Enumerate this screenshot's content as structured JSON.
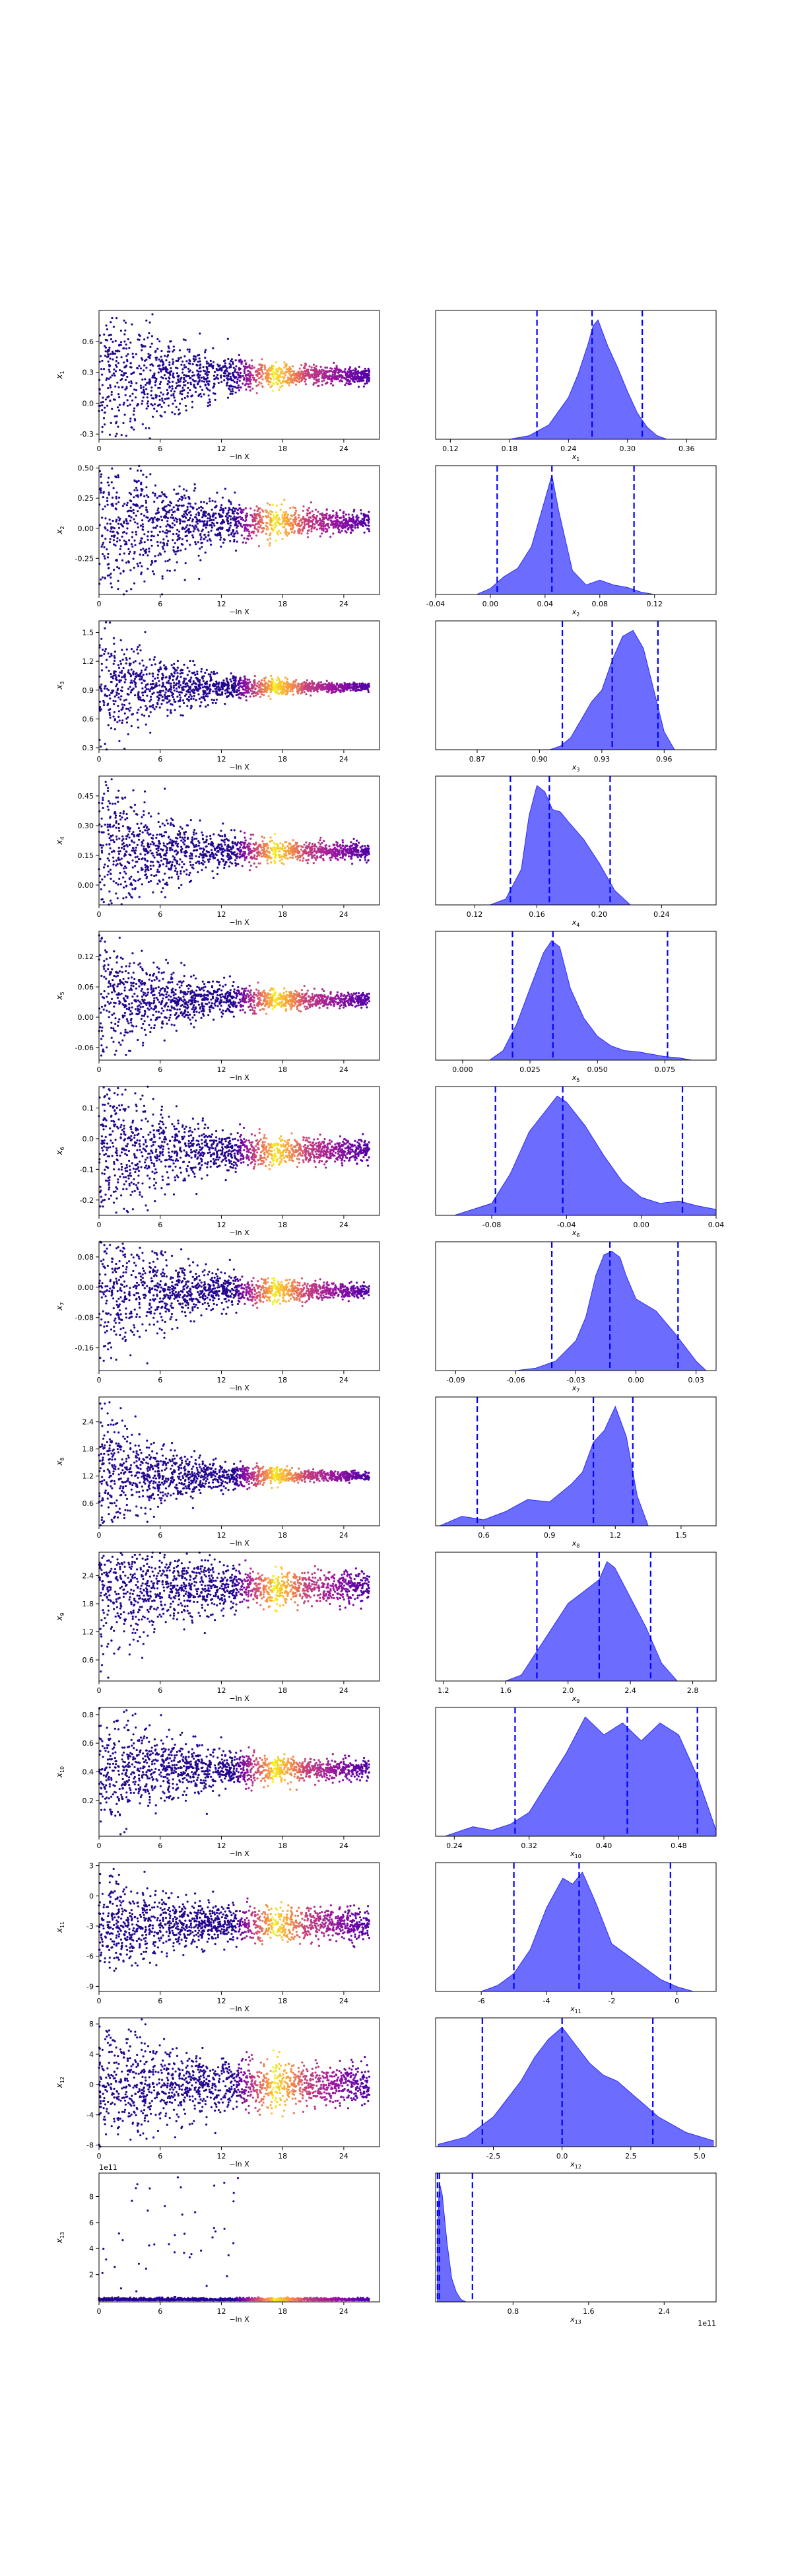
{
  "figure": {
    "scatter_xlabel": "−ln X",
    "colormap": [
      "#0d0887",
      "#5c01a6",
      "#9c179e",
      "#cc4778",
      "#ed7953",
      "#fdb42f",
      "#f0f921"
    ],
    "kde_fill_color": "#6464ff",
    "kde_edge_color": "#2a2aff",
    "quantile_line_color": "#0000ff"
  },
  "chart_data": [
    {
      "type": "scatter",
      "param": "x1",
      "ylabel": "x1",
      "xlim": [
        0,
        27.5
      ],
      "ylim": [
        -0.35,
        0.9
      ],
      "xticks": [
        "0",
        "6",
        "12",
        "18",
        "24"
      ],
      "yticks": [
        "-0.3",
        "0.0",
        "0.3",
        "0.6"
      ],
      "spread_start": 0.45,
      "center": 0.27,
      "spread_end": 0.03,
      "seed": 11
    },
    {
      "type": "area",
      "param": "x1",
      "xlabel": "x1",
      "xlim": [
        0.105,
        0.39
      ],
      "xticks": [
        "0.12",
        "0.18",
        "0.24",
        "0.30",
        "0.36"
      ],
      "quantiles": [
        0.208,
        0.264,
        0.315
      ],
      "kde_x": [
        0.18,
        0.2,
        0.22,
        0.24,
        0.25,
        0.26,
        0.265,
        0.27,
        0.28,
        0.29,
        0.3,
        0.31,
        0.32,
        0.33,
        0.34
      ],
      "kde_y": [
        0,
        0.03,
        0.12,
        0.35,
        0.55,
        0.8,
        0.95,
        1.0,
        0.78,
        0.6,
        0.4,
        0.22,
        0.1,
        0.03,
        0
      ]
    },
    {
      "type": "scatter",
      "param": "x2",
      "ylabel": "x2",
      "xlim": [
        0,
        27.5
      ],
      "ylim": [
        -0.55,
        0.52
      ],
      "xticks": [
        "0",
        "6",
        "12",
        "18",
        "24"
      ],
      "yticks": [
        "-0.25",
        "0.00",
        "0.25",
        "0.50"
      ],
      "spread_start": 0.45,
      "center": 0.05,
      "spread_end": 0.03,
      "seed": 23
    },
    {
      "type": "area",
      "param": "x2",
      "xlabel": "x2",
      "xlim": [
        -0.04,
        0.165
      ],
      "xticks": [
        "-0.04",
        "0.00",
        "0.04",
        "0.08",
        "0.12"
      ],
      "quantiles": [
        0.005,
        0.045,
        0.105
      ],
      "kde_x": [
        -0.01,
        0.0,
        0.01,
        0.02,
        0.03,
        0.04,
        0.045,
        0.05,
        0.06,
        0.07,
        0.08,
        0.09,
        0.1,
        0.11,
        0.12
      ],
      "kde_y": [
        0,
        0.05,
        0.15,
        0.22,
        0.4,
        0.8,
        1.0,
        0.7,
        0.2,
        0.08,
        0.12,
        0.08,
        0.06,
        0.02,
        0
      ]
    },
    {
      "type": "scatter",
      "param": "x3",
      "ylabel": "x3",
      "xlim": [
        0,
        27.5
      ],
      "ylim": [
        0.28,
        1.62
      ],
      "xticks": [
        "0",
        "6",
        "12",
        "18",
        "24"
      ],
      "yticks": [
        "0.3",
        "0.6",
        "0.9",
        "1.2",
        "1.5"
      ],
      "spread_start": 0.35,
      "center": 0.93,
      "spread_end": 0.015,
      "seed": 37
    },
    {
      "type": "area",
      "param": "x3",
      "xlabel": "x3",
      "xlim": [
        0.85,
        0.985
      ],
      "xticks": [
        "0.87",
        "0.90",
        "0.93",
        "0.96"
      ],
      "quantiles": [
        0.911,
        0.935,
        0.957
      ],
      "kde_x": [
        0.905,
        0.91,
        0.915,
        0.92,
        0.925,
        0.93,
        0.935,
        0.94,
        0.945,
        0.95,
        0.955,
        0.96,
        0.965
      ],
      "kde_y": [
        0,
        0.03,
        0.1,
        0.25,
        0.4,
        0.5,
        0.75,
        0.95,
        1.0,
        0.85,
        0.5,
        0.15,
        0
      ]
    },
    {
      "type": "scatter",
      "param": "x4",
      "ylabel": "x4",
      "xlim": [
        0,
        27.5
      ],
      "ylim": [
        -0.1,
        0.55
      ],
      "xticks": [
        "0",
        "6",
        "12",
        "18",
        "24"
      ],
      "yticks": [
        "0.00",
        "0.15",
        "0.30",
        "0.45"
      ],
      "spread_start": 0.2,
      "center": 0.17,
      "spread_end": 0.015,
      "seed": 41
    },
    {
      "type": "area",
      "param": "x4",
      "xlabel": "x4",
      "xlim": [
        0.095,
        0.275
      ],
      "xticks": [
        "0.12",
        "0.16",
        "0.20",
        "0.24"
      ],
      "quantiles": [
        0.143,
        0.168,
        0.207
      ],
      "kde_x": [
        0.13,
        0.14,
        0.15,
        0.155,
        0.16,
        0.165,
        0.17,
        0.175,
        0.18,
        0.19,
        0.2,
        0.21,
        0.22
      ],
      "kde_y": [
        0,
        0.05,
        0.3,
        0.75,
        1.0,
        0.95,
        0.8,
        0.78,
        0.7,
        0.55,
        0.35,
        0.12,
        0
      ]
    },
    {
      "type": "scatter",
      "param": "x5",
      "ylabel": "x5",
      "xlim": [
        0,
        27.5
      ],
      "ylim": [
        -0.085,
        0.17
      ],
      "xticks": [
        "0",
        "6",
        "12",
        "18",
        "24"
      ],
      "yticks": [
        "-0.06",
        "0.00",
        "0.06",
        "0.12"
      ],
      "spread_start": 0.07,
      "center": 0.035,
      "spread_end": 0.005,
      "seed": 53
    },
    {
      "type": "area",
      "param": "x5",
      "xlabel": "x5",
      "xlim": [
        -0.01,
        0.094
      ],
      "xticks": [
        "0.000",
        "0.025",
        "0.050",
        "0.075"
      ],
      "quantiles": [
        0.0185,
        0.0335,
        0.076
      ],
      "kde_x": [
        0.01,
        0.015,
        0.02,
        0.025,
        0.03,
        0.033,
        0.036,
        0.04,
        0.045,
        0.05,
        0.055,
        0.06,
        0.065,
        0.07,
        0.075,
        0.08,
        0.085
      ],
      "kde_y": [
        0,
        0.08,
        0.3,
        0.6,
        0.9,
        1.0,
        0.95,
        0.6,
        0.35,
        0.2,
        0.12,
        0.08,
        0.07,
        0.05,
        0.03,
        0.02,
        0
      ]
    },
    {
      "type": "scatter",
      "param": "x6",
      "ylabel": "x6",
      "xlim": [
        0,
        27.5
      ],
      "ylim": [
        -0.25,
        0.17
      ],
      "xticks": [
        "0",
        "6",
        "12",
        "18",
        "24"
      ],
      "yticks": [
        "-0.2",
        "-0.1",
        "0.0",
        "0.1"
      ],
      "spread_start": 0.13,
      "center": -0.04,
      "spread_end": 0.015,
      "seed": 67
    },
    {
      "type": "area",
      "param": "x6",
      "xlabel": "x6",
      "xlim": [
        -0.11,
        0.04
      ],
      "xticks": [
        "-0.08",
        "-0.04",
        "0.00",
        "0.04"
      ],
      "quantiles": [
        -0.078,
        -0.042,
        0.022
      ],
      "kde_x": [
        -0.1,
        -0.08,
        -0.07,
        -0.06,
        -0.05,
        -0.045,
        -0.04,
        -0.03,
        -0.02,
        -0.01,
        0.0,
        0.01,
        0.02,
        0.03,
        0.04
      ],
      "kde_y": [
        0,
        0.1,
        0.35,
        0.7,
        0.9,
        1.0,
        0.95,
        0.75,
        0.5,
        0.28,
        0.15,
        0.1,
        0.12,
        0.08,
        0.05
      ]
    },
    {
      "type": "scatter",
      "param": "x7",
      "ylabel": "x7",
      "xlim": [
        0,
        27.5
      ],
      "ylim": [
        -0.22,
        0.12
      ],
      "xticks": [
        "0",
        "6",
        "12",
        "18",
        "24"
      ],
      "yticks": [
        "-0.16",
        "-0.08",
        "0.00",
        "0.08"
      ],
      "spread_start": 0.1,
      "center": -0.01,
      "spread_end": 0.008,
      "seed": 71
    },
    {
      "type": "area",
      "param": "x7",
      "xlabel": "x7",
      "xlim": [
        -0.1,
        0.04
      ],
      "xticks": [
        "-0.09",
        "-0.06",
        "-0.03",
        "0.00",
        "0.03"
      ],
      "quantiles": [
        -0.042,
        -0.013,
        0.021
      ],
      "kde_x": [
        -0.06,
        -0.05,
        -0.04,
        -0.03,
        -0.025,
        -0.02,
        -0.016,
        -0.012,
        -0.008,
        -0.005,
        0.0,
        0.01,
        0.02,
        0.03,
        0.035
      ],
      "kde_y": [
        0,
        0.02,
        0.08,
        0.25,
        0.45,
        0.8,
        0.97,
        1.0,
        0.95,
        0.8,
        0.6,
        0.5,
        0.3,
        0.08,
        0
      ]
    },
    {
      "type": "scatter",
      "param": "x8",
      "ylabel": "x8",
      "xlim": [
        0,
        27.5
      ],
      "ylim": [
        0.1,
        2.95
      ],
      "xticks": [
        "0",
        "6",
        "12",
        "18",
        "24"
      ],
      "yticks": [
        "0.6",
        "1.2",
        "1.8",
        "2.4"
      ],
      "spread_start": 0.8,
      "center": 1.2,
      "spread_end": 0.03,
      "seed": 83
    },
    {
      "type": "area",
      "param": "x8",
      "xlabel": "x8",
      "xlim": [
        0.38,
        1.66
      ],
      "xticks": [
        "0.6",
        "0.9",
        "1.2",
        "1.5"
      ],
      "quantiles": [
        0.57,
        1.1,
        1.28
      ],
      "kde_x": [
        0.4,
        0.5,
        0.6,
        0.7,
        0.8,
        0.9,
        1.0,
        1.05,
        1.1,
        1.15,
        1.2,
        1.25,
        1.3,
        1.35
      ],
      "kde_y": [
        0,
        0.08,
        0.05,
        0.12,
        0.22,
        0.2,
        0.35,
        0.45,
        0.7,
        0.8,
        1.0,
        0.75,
        0.25,
        0
      ]
    },
    {
      "type": "scatter",
      "param": "x9",
      "ylabel": "x9",
      "xlim": [
        0,
        27.5
      ],
      "ylim": [
        0.15,
        2.9
      ],
      "xticks": [
        "0",
        "6",
        "12",
        "18",
        "24"
      ],
      "yticks": [
        "0.6",
        "1.2",
        "1.8",
        "2.4"
      ],
      "spread_start": 0.7,
      "center": 2.15,
      "spread_end": 0.15,
      "seed": 97
    },
    {
      "type": "area",
      "param": "x9",
      "xlabel": "x9",
      "xlim": [
        1.15,
        2.95
      ],
      "xticks": [
        "1.2",
        "1.6",
        "2.0",
        "2.4",
        "2.8"
      ],
      "quantiles": [
        1.8,
        2.2,
        2.53
      ],
      "kde_x": [
        1.6,
        1.7,
        1.8,
        1.9,
        2.0,
        2.1,
        2.2,
        2.25,
        2.3,
        2.4,
        2.5,
        2.6,
        2.7
      ],
      "kde_y": [
        0,
        0.05,
        0.25,
        0.45,
        0.65,
        0.75,
        0.85,
        1.0,
        0.95,
        0.7,
        0.45,
        0.15,
        0
      ]
    },
    {
      "type": "scatter",
      "param": "x10",
      "ylabel": "x10",
      "xlim": [
        0,
        27.5
      ],
      "ylim": [
        -0.05,
        0.85
      ],
      "xticks": [
        "0",
        "6",
        "12",
        "18",
        "24"
      ],
      "yticks": [
        "0.2",
        "0.4",
        "0.6",
        "0.8"
      ],
      "spread_start": 0.22,
      "center": 0.42,
      "spread_end": 0.03,
      "seed": 101
    },
    {
      "type": "area",
      "param": "x10",
      "xlabel": "x10",
      "xlim": [
        0.22,
        0.52
      ],
      "xticks": [
        "0.24",
        "0.32",
        "0.40",
        "0.48"
      ],
      "quantiles": [
        0.305,
        0.425,
        0.5
      ],
      "kde_x": [
        0.23,
        0.26,
        0.28,
        0.3,
        0.32,
        0.34,
        0.36,
        0.38,
        0.4,
        0.42,
        0.44,
        0.46,
        0.48,
        0.5,
        0.52
      ],
      "kde_y": [
        0,
        0.08,
        0.05,
        0.1,
        0.2,
        0.45,
        0.7,
        1.0,
        0.85,
        0.95,
        0.8,
        0.95,
        0.85,
        0.5,
        0.05
      ]
    },
    {
      "type": "scatter",
      "param": "x11",
      "ylabel": "x11",
      "xlim": [
        0,
        27.5
      ],
      "ylim": [
        -9.5,
        3.3
      ],
      "xticks": [
        "0",
        "6",
        "12",
        "18",
        "24"
      ],
      "yticks": [
        "-9",
        "-6",
        "-3",
        "0",
        "3"
      ],
      "spread_start": 2.2,
      "center": -2.8,
      "spread_end": 0.7,
      "seed": 113
    },
    {
      "type": "area",
      "param": "x11",
      "xlabel": "x11",
      "xlim": [
        -7.4,
        1.2
      ],
      "xticks": [
        "-6",
        "-4",
        "-2",
        "0"
      ],
      "quantiles": [
        -5.0,
        -3.0,
        -0.2
      ],
      "kde_x": [
        -6,
        -5.5,
        -5,
        -4.5,
        -4,
        -3.5,
        -3.2,
        -2.9,
        -2.5,
        -2,
        -1.5,
        -1,
        -0.5,
        0,
        0.5
      ],
      "kde_y": [
        0,
        0.05,
        0.15,
        0.35,
        0.7,
        0.95,
        0.9,
        1.0,
        0.75,
        0.4,
        0.3,
        0.2,
        0.1,
        0.04,
        0
      ]
    },
    {
      "type": "scatter",
      "param": "x12",
      "ylabel": "x12",
      "xlim": [
        0,
        27.5
      ],
      "ylim": [
        -8.2,
        8.8
      ],
      "xticks": [
        "0",
        "6",
        "12",
        "18",
        "24"
      ],
      "yticks": [
        "-8",
        "-4",
        "0",
        "4",
        "8"
      ],
      "spread_start": 3.5,
      "center": 0.0,
      "spread_end": 1.2,
      "seed": 127
    },
    {
      "type": "area",
      "param": "x12",
      "xlabel": "x12",
      "xlim": [
        -4.6,
        5.6
      ],
      "xticks": [
        "-2.5",
        "0.0",
        "2.5",
        "5.0"
      ],
      "quantiles": [
        -2.9,
        0.0,
        3.3
      ],
      "kde_x": [
        -4.5,
        -3.5,
        -2.5,
        -1.5,
        -1,
        -0.5,
        0,
        0.5,
        1,
        1.5,
        2,
        2.5,
        3,
        3.5,
        4.5,
        5.5
      ],
      "kde_y": [
        0.02,
        0.08,
        0.25,
        0.55,
        0.75,
        0.9,
        1.0,
        0.85,
        0.7,
        0.6,
        0.55,
        0.45,
        0.35,
        0.25,
        0.12,
        0.05
      ]
    },
    {
      "type": "scatter",
      "param": "x13",
      "ylabel": "x13",
      "scale_label": "1e11",
      "xlim": [
        0,
        27.5
      ],
      "ylim": [
        -0.1,
        9.8
      ],
      "xticks": [
        "0",
        "6",
        "12",
        "18",
        "24"
      ],
      "yticks": [
        "2",
        "4",
        "6",
        "8"
      ],
      "mode": "heavy-tail",
      "seed": 131
    },
    {
      "type": "area",
      "param": "x13",
      "xlabel": "x13",
      "scale_label": "1e11",
      "xlim": [
        -0.02,
        2.95
      ],
      "xticks": [
        "0.8",
        "1.6",
        "2.4"
      ],
      "quantiles": [
        0.0,
        0.02,
        0.37
      ],
      "kde_x": [
        0,
        0.02,
        0.05,
        0.1,
        0.15,
        0.2,
        0.25,
        0.3
      ],
      "kde_y": [
        0.6,
        1.0,
        0.9,
        0.5,
        0.2,
        0.08,
        0.02,
        0
      ]
    }
  ]
}
